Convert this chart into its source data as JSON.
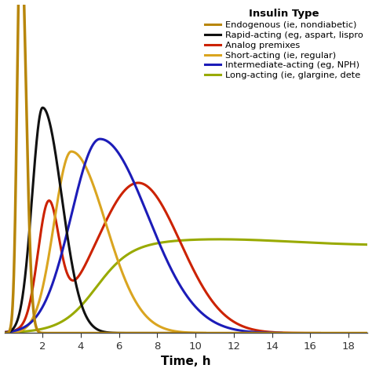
{
  "title": "Insulin Type",
  "xlabel": "Time, h",
  "xlim": [
    0,
    19
  ],
  "ylim": [
    0,
    1.05
  ],
  "xticks": [
    2,
    4,
    6,
    8,
    10,
    12,
    14,
    16,
    18
  ],
  "legend_entries": [
    {
      "label": "Endogenous (ie, nondiabetic)",
      "color": "#B8860B"
    },
    {
      "label": "Rapid-acting (eg, aspart, lispro",
      "color": "#111111"
    },
    {
      "label": "Analog premixes",
      "color": "#CC2200"
    },
    {
      "label": "Short-acting (ie, regular)",
      "color": "#DAA520"
    },
    {
      "label": "Intermediate-acting (eg, NPH)",
      "color": "#1C1CB8"
    },
    {
      "label": "Long-acting (ie, glargine, dete",
      "color": "#99AA00"
    }
  ],
  "background_color": "#ffffff",
  "linewidth": 2.2,
  "figsize": [
    4.74,
    4.74
  ],
  "dpi": 100
}
